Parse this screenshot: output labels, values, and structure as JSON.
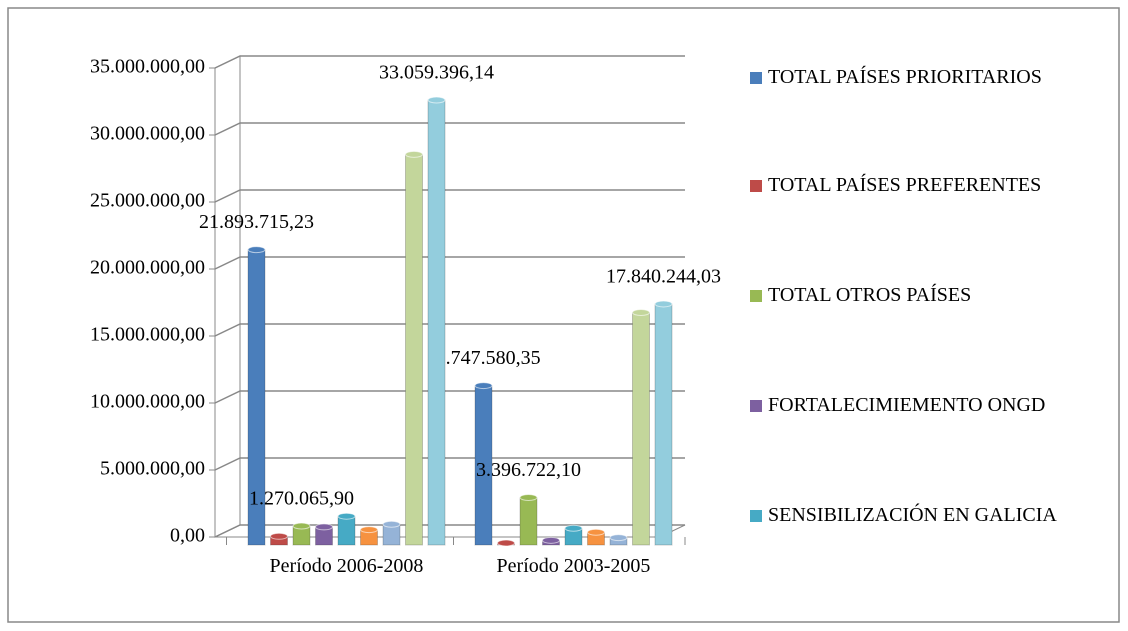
{
  "chart_data": {
    "type": "bar3d",
    "categories": [
      "Período 2006-2008",
      "Período 2003-2005"
    ],
    "series": [
      {
        "name": "TOTAL PAÍSES PRIORITARIOS",
        "color": "#4a7ebb",
        "values": [
          21893715.23,
          11747580.35
        ],
        "value_labels": [
          "21.893.715,23",
          "11.747.580,35"
        ]
      },
      {
        "name": "TOTAL PAÍSES PREFERENTES",
        "color": "#be4b48",
        "values": [
          500000,
          0
        ],
        "value_labels": [
          null,
          null
        ]
      },
      {
        "name": "TOTAL OTROS PAÍSES",
        "color": "#98b954",
        "values": [
          1270065.9,
          3396722.1
        ],
        "value_labels": [
          "1.270.065,90",
          "3.396.722,10"
        ]
      },
      {
        "name": "FORTALECIMIEMENTO ONGD",
        "color": "#7d60a0",
        "values": [
          1200000,
          200000
        ],
        "value_labels": [
          null,
          null
        ]
      },
      {
        "name": "SENSIBILIZACIÓN EN GALICIA",
        "color": "#46aac5",
        "values": [
          2000000,
          1100000
        ],
        "value_labels": [
          null,
          null
        ]
      },
      {
        "name": null,
        "color": "#f69240",
        "values": [
          1000000,
          800000
        ],
        "value_labels": [
          null,
          null
        ]
      },
      {
        "name": null,
        "color": "#95b3d7",
        "values": [
          1400000,
          400000
        ],
        "value_labels": [
          null,
          null
        ]
      },
      {
        "name": null,
        "color": "#c3d69b",
        "values": [
          29000000,
          17200000
        ],
        "value_labels": [
          null,
          null
        ]
      },
      {
        "name": null,
        "color": "#93cddd",
        "values": [
          33059396.14,
          17840244.03
        ],
        "value_labels": [
          "33.059.396,14",
          "17.840.244,03"
        ]
      }
    ],
    "ylim": [
      0,
      35000000
    ],
    "yticks": [
      {
        "value": 0,
        "label": "0,00"
      },
      {
        "value": 5000000,
        "label": "5.000.000,00"
      },
      {
        "value": 10000000,
        "label": "10.000.000,00"
      },
      {
        "value": 15000000,
        "label": "15.000.000,00"
      },
      {
        "value": 20000000,
        "label": "20.000.000,00"
      },
      {
        "value": 25000000,
        "label": "25.000.000,00"
      },
      {
        "value": 30000000,
        "label": "30.000.000,00"
      },
      {
        "value": 35000000,
        "label": "35.000.000,00"
      }
    ],
    "grid": true,
    "legend": "right"
  }
}
